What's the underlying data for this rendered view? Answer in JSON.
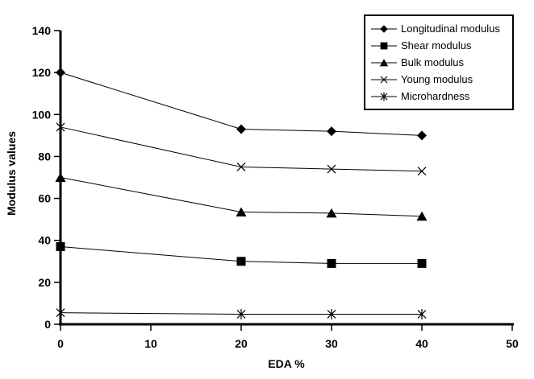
{
  "chart_data": {
    "type": "line",
    "title": "",
    "xlabel": "EDA %",
    "ylabel": "Modulus values",
    "x": [
      0,
      20,
      30,
      40
    ],
    "xlim": [
      0,
      50
    ],
    "ylim": [
      0,
      140
    ],
    "x_ticks": [
      0,
      10,
      20,
      30,
      40,
      50
    ],
    "y_ticks": [
      0,
      20,
      40,
      60,
      80,
      100,
      120,
      140
    ],
    "grid": false,
    "legend_position": "top-right",
    "series": [
      {
        "name": "Longitudinal modulus",
        "marker": "diamond",
        "values": [
          120,
          93,
          92,
          90
        ]
      },
      {
        "name": "Shear modulus",
        "marker": "square",
        "values": [
          37,
          30,
          29,
          29
        ]
      },
      {
        "name": "Bulk modulus",
        "marker": "triangle",
        "values": [
          70,
          53.5,
          53,
          51.5
        ]
      },
      {
        "name": "Young modulus",
        "marker": "x",
        "values": [
          94,
          75,
          74,
          73
        ]
      },
      {
        "name": "Microhardness",
        "marker": "asterisk",
        "values": [
          5.5,
          4.8,
          4.8,
          4.8
        ]
      }
    ],
    "colors": {
      "line": "#000000",
      "marker": "#000000",
      "background": "#ffffff"
    }
  }
}
